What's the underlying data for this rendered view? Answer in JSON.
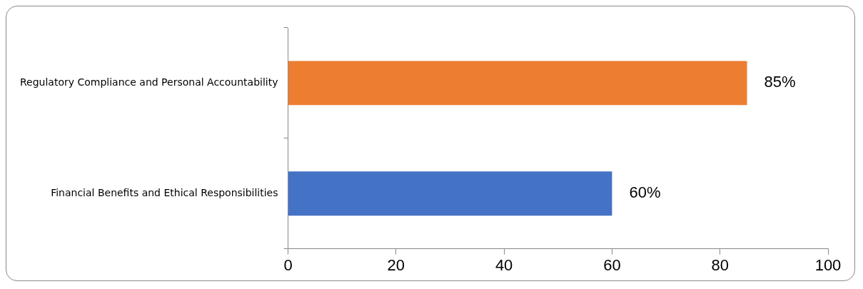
{
  "chart_data": {
    "type": "bar",
    "orientation": "horizontal",
    "categories": [
      "Regulatory Compliance and Personal Accountability",
      "Financial Benefits and Ethical Responsibilities"
    ],
    "values": [
      85,
      60
    ],
    "colors": [
      "#ed7d31",
      "#4472c4"
    ],
    "value_labels": [
      "85%",
      "60%"
    ],
    "xlim": [
      0,
      100
    ],
    "xticks": [
      0,
      20,
      40,
      60,
      80,
      100
    ],
    "grid": false,
    "legend": false
  }
}
